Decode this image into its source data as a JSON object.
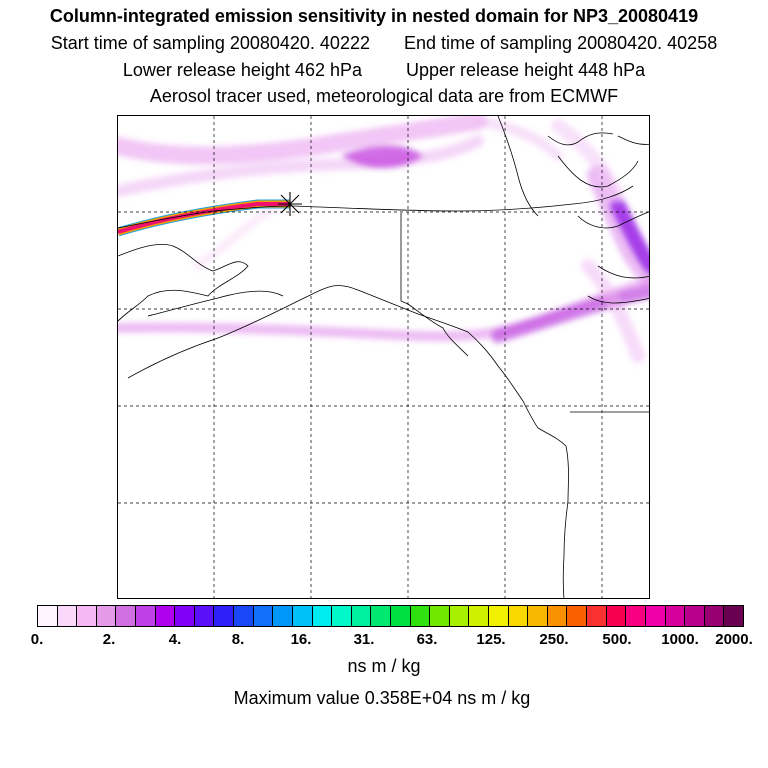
{
  "header": {
    "title": "Column-integrated emission sensitivity in nested domain for NP3_20080419",
    "start_time": "Start time of sampling 20080420. 40222",
    "end_time": "End time of sampling 20080420. 40258",
    "lower_release": "Lower release height  462 hPa",
    "upper_release": "Upper release height  448 hPa",
    "tracer_note": "Aerosol tracer used, meteorological data are from ECMWF"
  },
  "colorbar": {
    "colors": [
      "#fff4ff",
      "#fbd8fb",
      "#f5b8f5",
      "#e59ae8",
      "#d070e0",
      "#c040e8",
      "#b000f0",
      "#8000f8",
      "#5a10f8",
      "#3020f8",
      "#1848f8",
      "#1070f8",
      "#0098f8",
      "#00c0f8",
      "#00ecf0",
      "#00f8c8",
      "#00f0a0",
      "#00e870",
      "#00e040",
      "#30e010",
      "#70e800",
      "#a8f000",
      "#d0f000",
      "#f0f000",
      "#f8d800",
      "#f8b800",
      "#f89000",
      "#f86000",
      "#f83030",
      "#f80050",
      "#f80080",
      "#f000a8",
      "#d8009c",
      "#b8008c",
      "#960070",
      "#6a0050"
    ],
    "tick_labels": [
      "0.",
      "2.",
      "4.",
      "8.",
      "16.",
      "31.",
      "63.",
      "125.",
      "250.",
      "500.",
      "1000.",
      "2000."
    ],
    "units": "ns m / kg",
    "max_value": "Maximum value  0.358E+04 ns m / kg"
  },
  "map": {
    "release_marker": "asterisk",
    "grid": "dashed lat/lon lines",
    "plume_color": "#e26ce8"
  }
}
